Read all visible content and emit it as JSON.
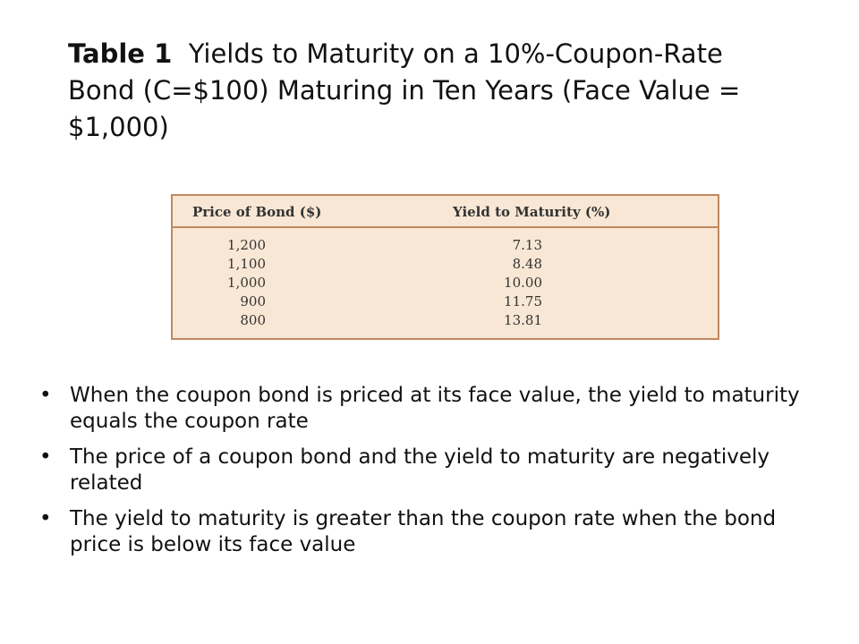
{
  "title": {
    "label": "Table 1",
    "text": "Yields to Maturity on a 10%-Coupon-Rate Bond (C=$100) Maturing in Ten Years (Face Value = $1,000)"
  },
  "table": {
    "headers": {
      "price": "Price of Bond ($)",
      "ytm": "Yield to Maturity (%)"
    },
    "rows": [
      {
        "price": "1,200",
        "ytm": "7.13"
      },
      {
        "price": "1,100",
        "ytm": "8.48"
      },
      {
        "price": "1,000",
        "ytm": "10.00"
      },
      {
        "price": "900",
        "ytm": "11.75"
      },
      {
        "price": "800",
        "ytm": "13.81"
      }
    ]
  },
  "bullets": [
    "When the coupon bond is priced at its face value, the yield to maturity equals the coupon rate",
    "The price of a coupon bond and the yield to maturity are negatively related",
    "The yield to maturity is greater than the coupon rate when the bond price is below its face value"
  ],
  "bullet_glyph": "•"
}
